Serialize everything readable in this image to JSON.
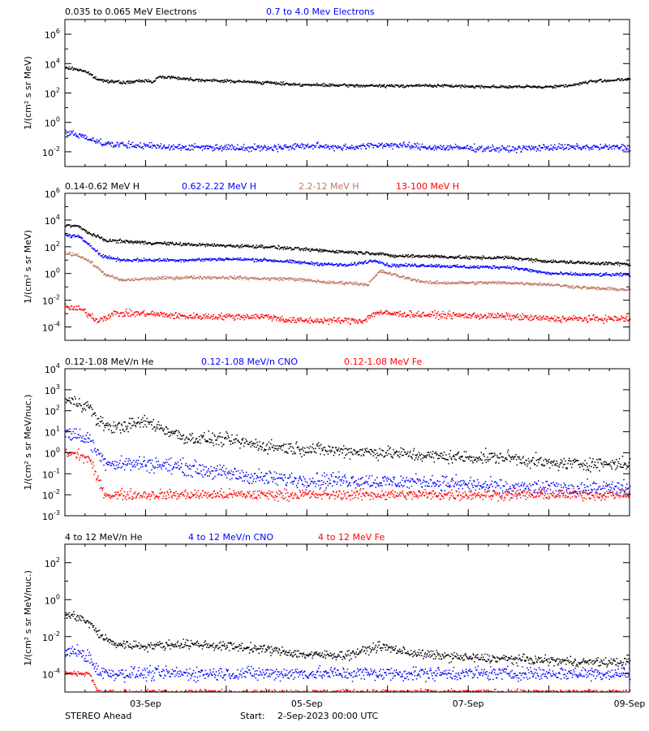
{
  "footer": {
    "spacecraft": "STEREO Ahead",
    "start_label": "Start:",
    "start_value": "2-Sep-2023 00:00 UTC"
  },
  "colors": {
    "black": "#000000",
    "blue": "#0000ff",
    "tan": "#c07860",
    "red": "#ff0000"
  },
  "chart_data": [
    {
      "type": "scatter",
      "ylog": true,
      "ylim": [
        0.001,
        10000000
      ],
      "ylabel": "1/(cm² s sr MeV)",
      "ytick_exponents": [
        -2,
        0,
        2,
        4,
        6
      ],
      "x_tick_labels": [
        "03-Sep",
        "05-Sep",
        "07-Sep",
        "09-Sep"
      ],
      "xlim_days": [
        0,
        7
      ],
      "series": [
        {
          "name": "0.035 to 0.065 MeV Electrons",
          "color": "#000000",
          "scatter": 0.08,
          "x": [
            0,
            0.1,
            0.25,
            0.4,
            0.5,
            0.7,
            0.8,
            1.0,
            1.1,
            1.15,
            1.3,
            1.5,
            1.8,
            2.0,
            2.5,
            2.8,
            3.0,
            3.5,
            4.0,
            4.5,
            5.0,
            5.5,
            5.9,
            6.1,
            6.3,
            6.5,
            6.7,
            6.9,
            7.0
          ],
          "y": [
            5000,
            4500,
            3000,
            800,
            700,
            500,
            550,
            700,
            600,
            1200,
            1200,
            900,
            700,
            650,
            500,
            400,
            350,
            320,
            300,
            320,
            280,
            260,
            260,
            280,
            350,
            600,
            700,
            800,
            800
          ]
        },
        {
          "name": "0.7 to 4.0 Mev Electrons",
          "color": "#0000ff",
          "scatter": 0.18,
          "x": [
            0,
            0.2,
            0.4,
            0.6,
            1.0,
            1.5,
            2.0,
            2.5,
            3.0,
            3.5,
            4.0,
            4.5,
            5.0,
            5.5,
            6.0,
            6.5,
            7.0
          ],
          "y": [
            0.2,
            0.12,
            0.05,
            0.03,
            0.025,
            0.02,
            0.02,
            0.018,
            0.025,
            0.02,
            0.03,
            0.02,
            0.018,
            0.015,
            0.02,
            0.02,
            0.02
          ]
        }
      ]
    },
    {
      "type": "scatter",
      "ylog": true,
      "ylim": [
        1e-05,
        1000000
      ],
      "ylabel": "1/(cm² s sr MeV)",
      "ytick_exponents": [
        -4,
        -2,
        0,
        2,
        4,
        6
      ],
      "x_tick_labels": [
        "03-Sep",
        "05-Sep",
        "07-Sep",
        "09-Sep"
      ],
      "xlim_days": [
        0,
        7
      ],
      "series": [
        {
          "name": "0.14-0.62 MeV H",
          "color": "#000000",
          "scatter": 0.1,
          "x": [
            0,
            0.15,
            0.3,
            0.5,
            1.0,
            1.5,
            2.0,
            2.5,
            3.0,
            3.5,
            3.95,
            4.0,
            4.5,
            5.0,
            5.5,
            6.0,
            6.5,
            7.0
          ],
          "y": [
            4000,
            3500,
            1000,
            300,
            200,
            150,
            120,
            100,
            60,
            40,
            30,
            20,
            20,
            15,
            15,
            8,
            6,
            5
          ]
        },
        {
          "name": "0.62-2.22 MeV H",
          "color": "#0000ff",
          "scatter": 0.1,
          "x": [
            0,
            0.15,
            0.3,
            0.45,
            0.7,
            1.0,
            1.5,
            2.0,
            2.5,
            3.0,
            3.5,
            3.85,
            4.0,
            4.5,
            5.0,
            5.5,
            6.0,
            6.5,
            7.0
          ],
          "y": [
            700,
            600,
            150,
            20,
            10,
            10,
            10,
            12,
            10,
            6,
            4,
            10,
            4,
            4,
            3,
            3,
            1,
            0.8,
            0.8
          ]
        },
        {
          "name": "2.2-12 MeV H",
          "color": "#c07860",
          "scatter": 0.1,
          "x": [
            0,
            0.15,
            0.3,
            0.5,
            0.7,
            1.0,
            1.5,
            2.0,
            2.5,
            2.8,
            3.3,
            3.5,
            3.75,
            3.9,
            4.2,
            4.5,
            5.0,
            5.5,
            6.0,
            6.5,
            7.0
          ],
          "y": [
            30,
            25,
            8,
            0.8,
            0.3,
            0.4,
            0.5,
            0.5,
            0.4,
            0.4,
            0.2,
            0.2,
            0.15,
            1.5,
            0.5,
            0.2,
            0.2,
            0.2,
            0.15,
            0.08,
            0.06
          ]
        },
        {
          "name": "13-100 MeV H",
          "color": "#ff0000",
          "scatter": 0.2,
          "x": [
            0,
            0.2,
            0.4,
            0.6,
            1.0,
            1.5,
            2.0,
            2.5,
            2.8,
            3.2,
            3.5,
            3.7,
            3.85,
            4.0,
            4.5,
            5.0,
            5.5,
            6.0,
            6.5,
            7.0
          ],
          "y": [
            0.003,
            0.002,
            0.0003,
            0.001,
            0.001,
            0.0006,
            0.0006,
            0.0006,
            0.0003,
            0.0003,
            0.0003,
            0.0003,
            0.0012,
            0.001,
            0.0008,
            0.0007,
            0.0006,
            0.0004,
            0.0004,
            0.0004
          ]
        }
      ]
    },
    {
      "type": "scatter",
      "ylog": true,
      "ylim": [
        0.001,
        10000
      ],
      "ylabel": "1/(cm² s sr MeV/nuc.)",
      "ytick_exponents": [
        -3,
        -2,
        -1,
        0,
        1,
        2,
        3,
        4
      ],
      "x_tick_labels": [
        "03-Sep",
        "05-Sep",
        "07-Sep",
        "09-Sep"
      ],
      "xlim_days": [
        0,
        7
      ],
      "series": [
        {
          "name": "0.12-1.08 MeV/n He",
          "color": "#000000",
          "scatter": 0.25,
          "x": [
            0,
            0.15,
            0.3,
            0.4,
            0.6,
            1.0,
            1.3,
            1.5,
            2.0,
            2.5,
            3.0,
            3.5,
            4.0,
            4.5,
            5.0,
            5.5,
            6.0,
            6.5,
            7.0
          ],
          "y": [
            300,
            250,
            150,
            30,
            15,
            30,
            10,
            5,
            4,
            2,
            1.5,
            1.2,
            1.0,
            0.7,
            0.6,
            0.6,
            0.3,
            0.3,
            0.3
          ]
        },
        {
          "name": "0.12-1.08 MeV/n CNO",
          "color": "#0000ff",
          "scatter": 0.3,
          "x": [
            0,
            0.15,
            0.3,
            0.45,
            0.6,
            1.0,
            1.5,
            2.0,
            2.5,
            3.0,
            3.5,
            4.0,
            4.5,
            5.0,
            5.5,
            6.0,
            7.0
          ],
          "y": [
            8,
            7,
            4,
            0.5,
            0.3,
            0.3,
            0.2,
            0.1,
            0.06,
            0.05,
            0.05,
            0.04,
            0.04,
            0.03,
            0.02,
            0.02,
            0.02
          ]
        },
        {
          "name": "0.12-1.08 MeV Fe",
          "color": "#ff0000",
          "scatter": 0.2,
          "x": [
            0,
            0.15,
            0.3,
            0.4,
            0.5,
            1.0,
            2.0,
            3.0,
            4.0,
            5.0,
            6.0,
            7.0
          ],
          "y": [
            1.0,
            0.8,
            0.5,
            0.05,
            0.01,
            0.01,
            0.01,
            0.01,
            0.01,
            0.01,
            0.01,
            0.01
          ]
        }
      ]
    },
    {
      "type": "scatter",
      "ylog": true,
      "ylim": [
        1e-05,
        1000
      ],
      "ylabel": "1/(cm² s sr MeV/nuc.)",
      "ytick_exponents": [
        -4,
        -2,
        0,
        2
      ],
      "x_tick_labels": [
        "03-Sep",
        "05-Sep",
        "07-Sep",
        "09-Sep"
      ],
      "xlim_days": [
        0,
        7
      ],
      "series": [
        {
          "name": "4 to 12 MeV/n He",
          "color": "#000000",
          "scatter": 0.2,
          "x": [
            0,
            0.15,
            0.3,
            0.45,
            0.6,
            1.0,
            1.5,
            2.0,
            2.5,
            3.0,
            3.5,
            3.9,
            4.2,
            4.5,
            5.0,
            5.5,
            6.0,
            6.5,
            7.0
          ],
          "y": [
            0.15,
            0.12,
            0.05,
            0.01,
            0.004,
            0.003,
            0.004,
            0.003,
            0.002,
            0.001,
            0.001,
            0.003,
            0.0015,
            0.001,
            0.0007,
            0.0006,
            0.0005,
            0.0004,
            0.0004
          ]
        },
        {
          "name": "4 to 12 MeV/n CNO",
          "color": "#0000ff",
          "scatter": 0.3,
          "x": [
            0,
            0.15,
            0.3,
            0.4,
            0.5,
            1.0,
            2.0,
            3.0,
            4.0,
            5.0,
            6.0,
            7.0
          ],
          "y": [
            0.0015,
            0.0015,
            0.0007,
            0.00015,
            0.0001,
            0.0001,
            0.0001,
            0.0001,
            0.0001,
            0.0001,
            0.0001,
            0.0001
          ]
        },
        {
          "name": "4 to 12 MeV Fe",
          "color": "#ff0000",
          "scatter": 0.1,
          "x": [
            0,
            0.3,
            0.4,
            1.0,
            2.0,
            3.0,
            4.0,
            5.0,
            6.0,
            7.0
          ],
          "y": [
            0.0001,
            0.0001,
            1e-05,
            1e-05,
            1e-05,
            1e-05,
            1e-05,
            1e-05,
            1e-05,
            1e-05
          ]
        }
      ]
    }
  ]
}
